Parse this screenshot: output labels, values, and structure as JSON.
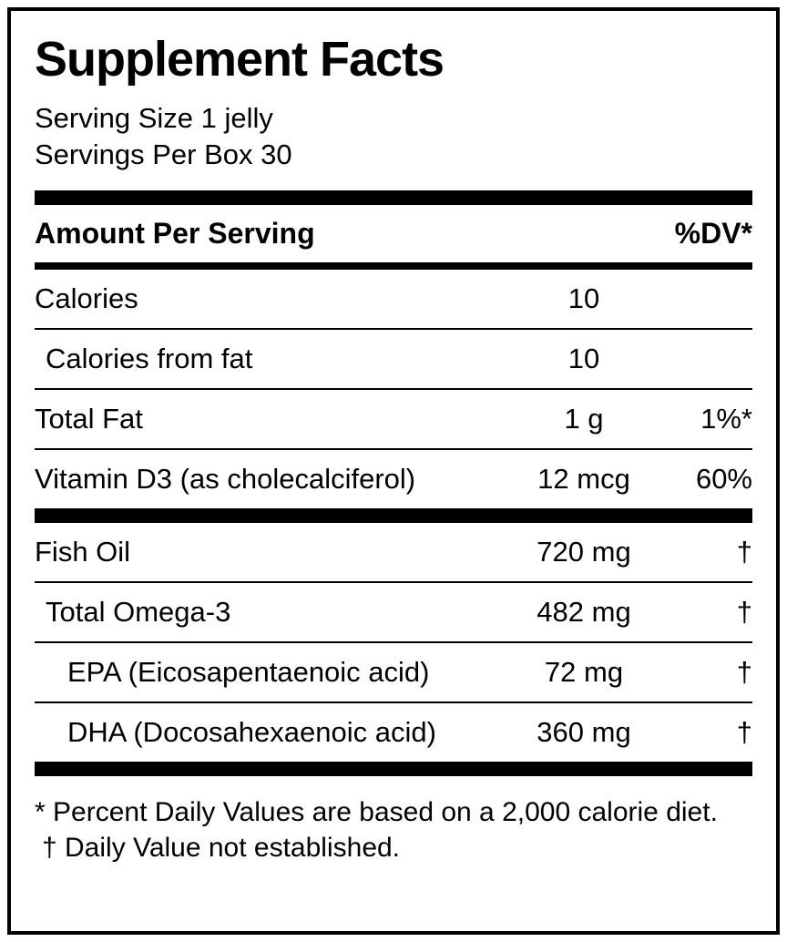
{
  "label": {
    "title": "Supplement Facts",
    "serving_size": "Serving Size 1 jelly",
    "servings_per_box": "Servings Per Box 30",
    "header": {
      "amount_per_serving": "Amount Per Serving",
      "dv": "%DV*"
    },
    "rows": [
      {
        "name": "Calories",
        "amount": "10",
        "dv": "",
        "indent": 0
      },
      {
        "name": "Calories from fat",
        "amount": "10",
        "dv": "",
        "indent": 1
      },
      {
        "name": "Total Fat",
        "amount": "1 g",
        "dv": "1%*",
        "indent": 0
      },
      {
        "name": "Vitamin D3 (as cholecalciferol)",
        "amount": "12 mcg",
        "dv": "60%",
        "indent": 0
      },
      {
        "name": "Fish Oil",
        "amount": "720 mg",
        "dv": "†",
        "indent": 0
      },
      {
        "name": "Total Omega-3",
        "amount": "482 mg",
        "dv": "†",
        "indent": 1
      },
      {
        "name": "EPA (Eicosapentaenoic acid)",
        "amount": "72 mg",
        "dv": "†",
        "indent": 2
      },
      {
        "name": "DHA (Docosahexaenoic acid)",
        "amount": "360 mg",
        "dv": "†",
        "indent": 2
      }
    ],
    "footnotes": {
      "percent_dv": "* Percent Daily Values are based on a 2,000 calorie diet.",
      "dagger": "† Daily Value not established."
    },
    "colors": {
      "text": "#000000",
      "background": "#ffffff"
    }
  }
}
